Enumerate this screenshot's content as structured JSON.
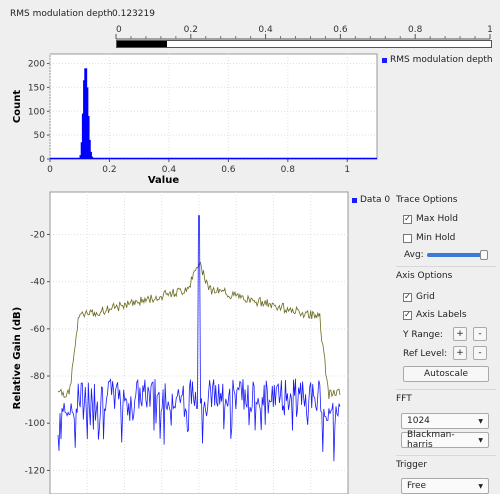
{
  "level": {
    "title": "RMS modulation depth",
    "value": "0.123219",
    "value_fraction": 0.123219,
    "ticks": [
      "0",
      "0.2",
      "0.4",
      "0.6",
      "0.8",
      "1"
    ]
  },
  "histogram": {
    "legend": "RMS modulation depth",
    "ylabel": "Count",
    "xlabel": "Value",
    "yticks": [
      "0",
      "50",
      "100",
      "150",
      "200"
    ],
    "xticks": [
      "0",
      "0.2",
      "0.4",
      "0.6",
      "0.8",
      "1"
    ]
  },
  "spectrum": {
    "legend": "Data 0",
    "ylabel": "Relative Gain (dB)",
    "yticks": [
      "-20",
      "-40",
      "-60",
      "-80",
      "-100",
      "-120"
    ]
  },
  "controls": {
    "trace_options": {
      "title": "Trace Options",
      "max_hold": "Max Hold",
      "min_hold": "Min Hold",
      "avg": "Avg:",
      "max_hold_checked": true,
      "min_hold_checked": false,
      "avg_level": 0.95
    },
    "axis_options": {
      "title": "Axis Options",
      "grid": "Grid",
      "axis_labels": "Axis Labels",
      "y_range": "Y Range:",
      "ref_level": "Ref Level:",
      "plus": "+",
      "minus": "-",
      "autoscale": "Autoscale",
      "grid_checked": true,
      "axis_labels_checked": true
    },
    "fft": {
      "title": "FFT",
      "size": "1024",
      "window": "Blackman-harris"
    },
    "trigger": {
      "title": "Trigger",
      "mode": "Free"
    }
  },
  "chart_data": [
    {
      "type": "bar",
      "xlabel": "Value",
      "ylabel": "Count",
      "xlim": [
        0,
        1.1
      ],
      "ylim": [
        0,
        220
      ],
      "series": [
        {
          "name": "RMS modulation depth",
          "color": "#0000ff",
          "x": [
            0.1,
            0.104,
            0.108,
            0.112,
            0.116,
            0.12,
            0.124,
            0.128,
            0.132,
            0.136,
            0.14,
            0.144
          ],
          "values": [
            2,
            8,
            35,
            95,
            165,
            190,
            150,
            90,
            40,
            15,
            5,
            2
          ]
        }
      ]
    },
    {
      "type": "line",
      "ylabel": "Relative Gain (dB)",
      "ylim": [
        -130,
        -2
      ],
      "x_points": 280,
      "series": [
        {
          "name": "Data 0",
          "color": "#1a1aff"
        },
        {
          "name": "Max Hold",
          "color": "#6b6b22"
        }
      ]
    }
  ]
}
